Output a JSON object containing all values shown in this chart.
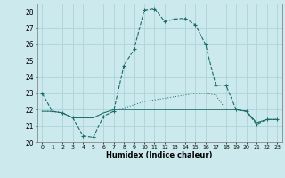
{
  "xlabel": "Humidex (Indice chaleur)",
  "bg_color": "#cce9ed",
  "grid_color": "#aad4d9",
  "line_color": "#1a6b6a",
  "xlim": [
    -0.5,
    23.5
  ],
  "ylim": [
    20,
    28.5
  ],
  "yticks": [
    20,
    21,
    22,
    23,
    24,
    25,
    26,
    27,
    28
  ],
  "xticks": [
    0,
    1,
    2,
    3,
    4,
    5,
    6,
    7,
    8,
    9,
    10,
    11,
    12,
    13,
    14,
    15,
    16,
    17,
    18,
    19,
    20,
    21,
    22,
    23
  ],
  "curve1_x": [
    0,
    1,
    2,
    3,
    4,
    5,
    6,
    7,
    8,
    9,
    10,
    11,
    12,
    13,
    14,
    15,
    16,
    17,
    18,
    19,
    20,
    21,
    22,
    23
  ],
  "curve1_y": [
    23.0,
    21.9,
    21.8,
    21.5,
    20.4,
    20.3,
    21.6,
    21.9,
    24.7,
    25.7,
    28.1,
    28.2,
    27.4,
    27.55,
    27.6,
    27.2,
    26.0,
    23.5,
    23.5,
    22.0,
    21.9,
    21.1,
    21.4,
    21.4
  ],
  "curve2_x": [
    0,
    1,
    2,
    3,
    4,
    5,
    6,
    7,
    8,
    9,
    10,
    11,
    12,
    13,
    14,
    15,
    16,
    17,
    18,
    19,
    20,
    21,
    22,
    23
  ],
  "curve2_y": [
    21.9,
    21.9,
    21.8,
    21.5,
    21.5,
    21.5,
    21.8,
    22.0,
    22.1,
    22.3,
    22.5,
    22.6,
    22.7,
    22.8,
    22.9,
    23.0,
    23.0,
    22.9,
    22.0,
    22.0,
    21.9,
    21.2,
    21.4,
    21.4
  ],
  "curve3_x": [
    0,
    1,
    2,
    3,
    4,
    5,
    6,
    7,
    8,
    9,
    10,
    11,
    12,
    13,
    14,
    15,
    16,
    17,
    18,
    19,
    20,
    21,
    22,
    23
  ],
  "curve3_y": [
    21.9,
    21.9,
    21.8,
    21.5,
    21.5,
    21.5,
    21.8,
    22.0,
    22.0,
    22.0,
    22.0,
    22.0,
    22.0,
    22.0,
    22.0,
    22.0,
    22.0,
    22.0,
    22.0,
    22.0,
    21.9,
    21.2,
    21.4,
    21.4
  ]
}
